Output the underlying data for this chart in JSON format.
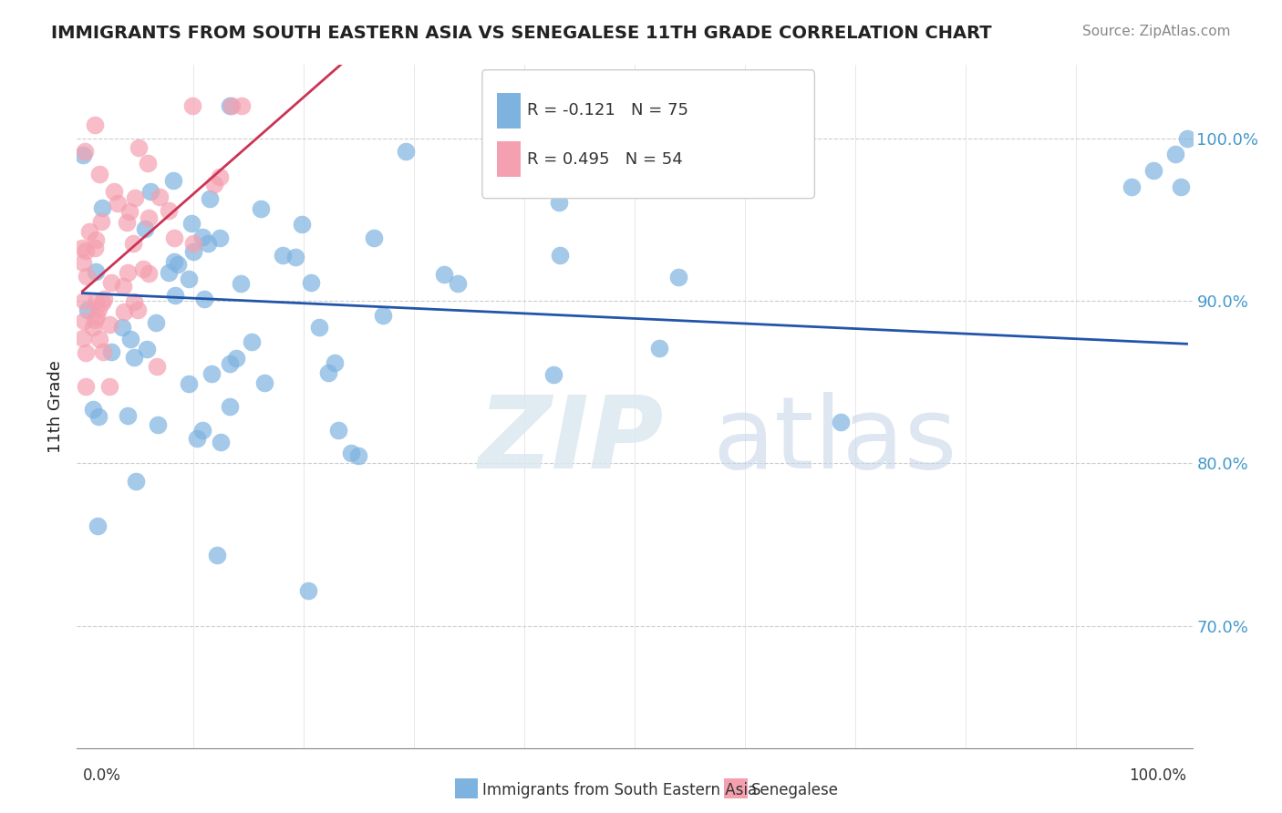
{
  "title": "IMMIGRANTS FROM SOUTH EASTERN ASIA VS SENEGALESE 11TH GRADE CORRELATION CHART",
  "source": "Source: ZipAtlas.com",
  "ylabel": "11th Grade",
  "ytick_labels": [
    "70.0%",
    "80.0%",
    "90.0%",
    "100.0%"
  ],
  "ytick_values": [
    0.7,
    0.8,
    0.9,
    1.0
  ],
  "ylim": [
    0.625,
    1.045
  ],
  "xlim": [
    -0.005,
    1.005
  ],
  "blue_color": "#7eb3e0",
  "pink_color": "#f4a0b0",
  "blue_line_color": "#2255aa",
  "pink_line_color": "#cc3355",
  "watermark_zip": "ZIP",
  "watermark_atlas": "atlas",
  "blue_R": -0.121,
  "blue_N": 75,
  "pink_R": 0.495,
  "pink_N": 54,
  "ytick_color": "#4499cc",
  "grid_color": "#cccccc",
  "title_color": "#222222",
  "source_color": "#888888"
}
